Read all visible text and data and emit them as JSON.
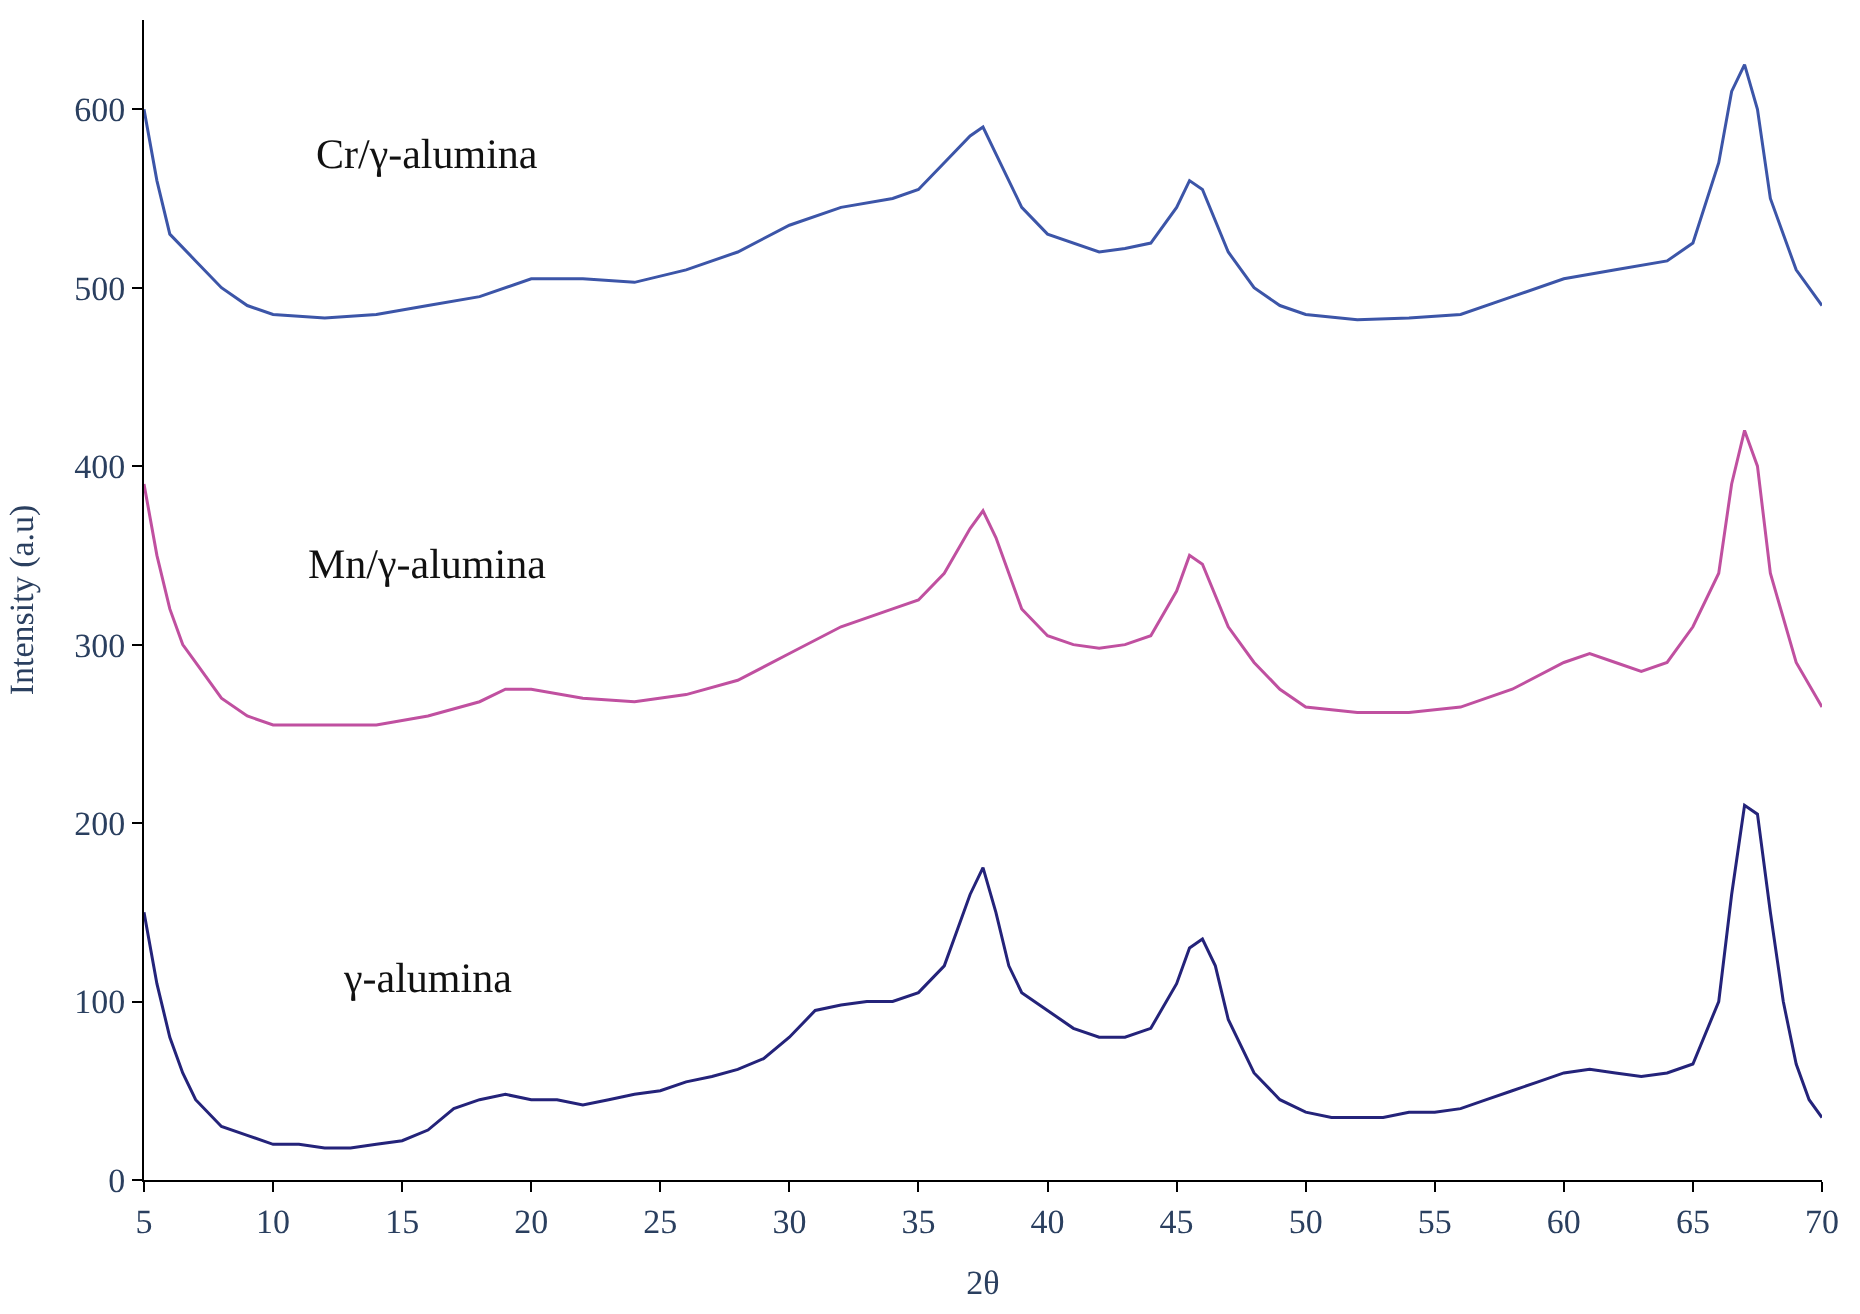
{
  "chart_data": {
    "type": "line",
    "xlabel": "2θ",
    "ylabel": "Intensity (a.u)",
    "xlim": [
      5,
      70
    ],
    "xticks": [
      5,
      10,
      15,
      20,
      25,
      30,
      35,
      40,
      45,
      50,
      55,
      60,
      65,
      70
    ],
    "ylim": [
      0,
      650
    ],
    "yticks": [
      0,
      100,
      200,
      300,
      400,
      500,
      600
    ],
    "series": [
      {
        "name": "Cr/γ-alumina",
        "color": "#3c55a8",
        "x": [
          5,
          5.5,
          6,
          7,
          8,
          9,
          10,
          12,
          14,
          16,
          18,
          20,
          22,
          24,
          26,
          28,
          30,
          32,
          34,
          35,
          36,
          37,
          37.5,
          38,
          39,
          40,
          42,
          43,
          44,
          45,
          45.5,
          46,
          47,
          48,
          49,
          50,
          52,
          54,
          56,
          58,
          60,
          62,
          64,
          65,
          66,
          66.5,
          67,
          67.5,
          68,
          69,
          70
        ],
        "values": [
          600,
          560,
          530,
          515,
          500,
          490,
          485,
          483,
          485,
          490,
          495,
          505,
          505,
          503,
          510,
          520,
          535,
          545,
          550,
          555,
          570,
          585,
          590,
          575,
          545,
          530,
          520,
          522,
          525,
          545,
          560,
          555,
          520,
          500,
          490,
          485,
          482,
          483,
          485,
          495,
          505,
          510,
          515,
          525,
          570,
          610,
          625,
          600,
          550,
          510,
          490
        ]
      },
      {
        "name": "Mn/γ-alumina",
        "color": "#c050a0",
        "x": [
          5,
          5.5,
          6,
          6.5,
          7,
          8,
          9,
          10,
          12,
          14,
          16,
          18,
          19,
          20,
          22,
          24,
          26,
          28,
          30,
          32,
          34,
          35,
          36,
          37,
          37.5,
          38,
          39,
          40,
          41,
          42,
          43,
          44,
          45,
          45.5,
          46,
          47,
          48,
          49,
          50,
          52,
          54,
          56,
          58,
          60,
          61,
          62,
          63,
          64,
          65,
          66,
          66.5,
          67,
          67.5,
          68,
          69,
          70
        ],
        "values": [
          390,
          350,
          320,
          300,
          290,
          270,
          260,
          255,
          255,
          255,
          260,
          268,
          275,
          275,
          270,
          268,
          272,
          280,
          295,
          310,
          320,
          325,
          340,
          365,
          375,
          360,
          320,
          305,
          300,
          298,
          300,
          305,
          330,
          350,
          345,
          310,
          290,
          275,
          265,
          262,
          262,
          265,
          275,
          290,
          295,
          290,
          285,
          290,
          310,
          340,
          390,
          420,
          400,
          340,
          290,
          265
        ]
      },
      {
        "name": "γ-alumina",
        "color": "#24237a",
        "x": [
          5,
          5.5,
          6,
          6.5,
          7,
          8,
          9,
          10,
          11,
          12,
          13,
          14,
          15,
          16,
          17,
          18,
          19,
          20,
          21,
          22,
          23,
          24,
          25,
          26,
          27,
          28,
          29,
          30,
          31,
          32,
          33,
          34,
          35,
          36,
          36.5,
          37,
          37.5,
          38,
          38.5,
          39,
          40,
          41,
          42,
          43,
          44,
          45,
          45.5,
          46,
          46.5,
          47,
          48,
          49,
          50,
          51,
          52,
          53,
          54,
          55,
          56,
          57,
          58,
          59,
          60,
          61,
          62,
          63,
          64,
          65,
          66,
          66.5,
          67,
          67.5,
          68,
          68.5,
          69,
          69.5,
          70
        ],
        "values": [
          150,
          110,
          80,
          60,
          45,
          30,
          25,
          20,
          20,
          18,
          18,
          20,
          22,
          28,
          40,
          45,
          48,
          45,
          45,
          42,
          45,
          48,
          50,
          55,
          58,
          62,
          68,
          80,
          95,
          98,
          100,
          100,
          105,
          120,
          140,
          160,
          175,
          150,
          120,
          105,
          95,
          85,
          80,
          80,
          85,
          110,
          130,
          135,
          120,
          90,
          60,
          45,
          38,
          35,
          35,
          35,
          38,
          38,
          40,
          45,
          50,
          55,
          60,
          62,
          60,
          58,
          60,
          65,
          100,
          160,
          210,
          205,
          150,
          100,
          65,
          45,
          35
        ]
      }
    ]
  }
}
